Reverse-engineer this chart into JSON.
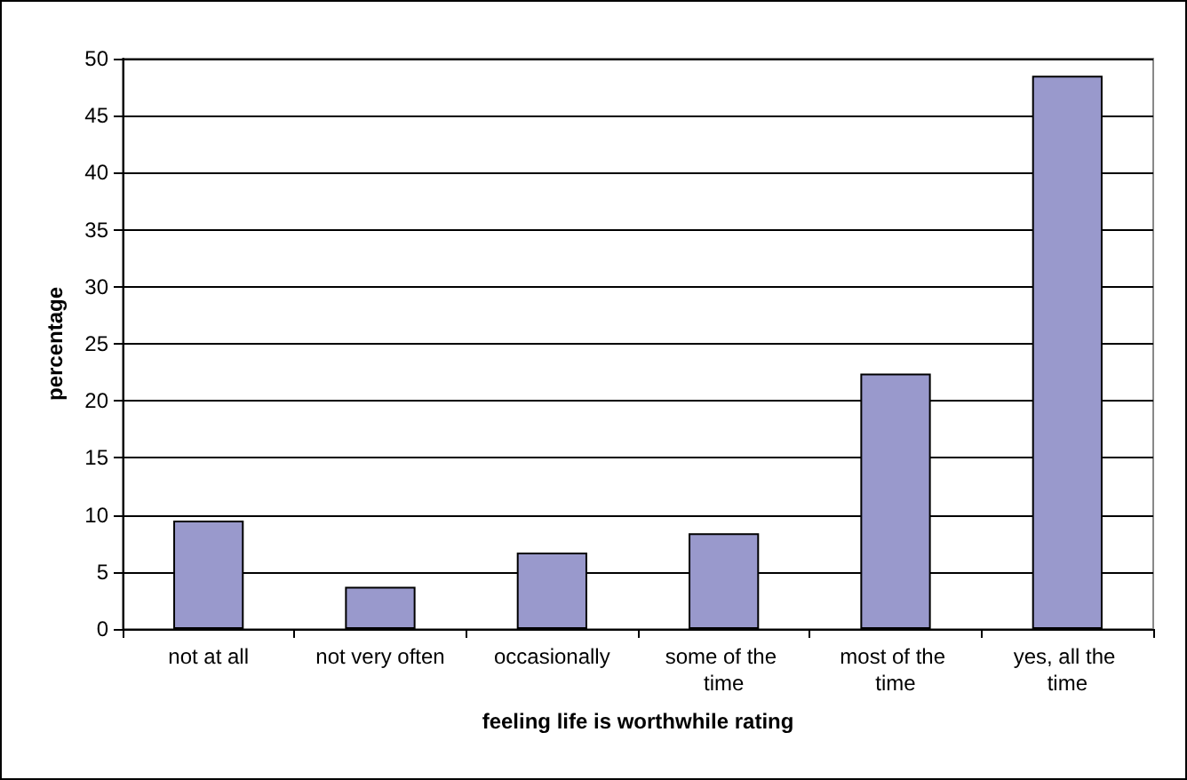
{
  "chart_data": {
    "type": "bar",
    "xlabel": "feeling life is worthwhile rating",
    "ylabel": "percentage",
    "categories": [
      "not at all",
      "not very often",
      "occasionally",
      "some of the time",
      "most of the time",
      "yes, all the time"
    ],
    "values": [
      9.5,
      3.7,
      6.7,
      8.4,
      22.4,
      48.5
    ],
    "color": "#9999cc",
    "ylim": [
      0,
      50
    ],
    "yticks": [
      0,
      5,
      10,
      15,
      20,
      25,
      30,
      35,
      40,
      45,
      50
    ],
    "grid": "y"
  }
}
